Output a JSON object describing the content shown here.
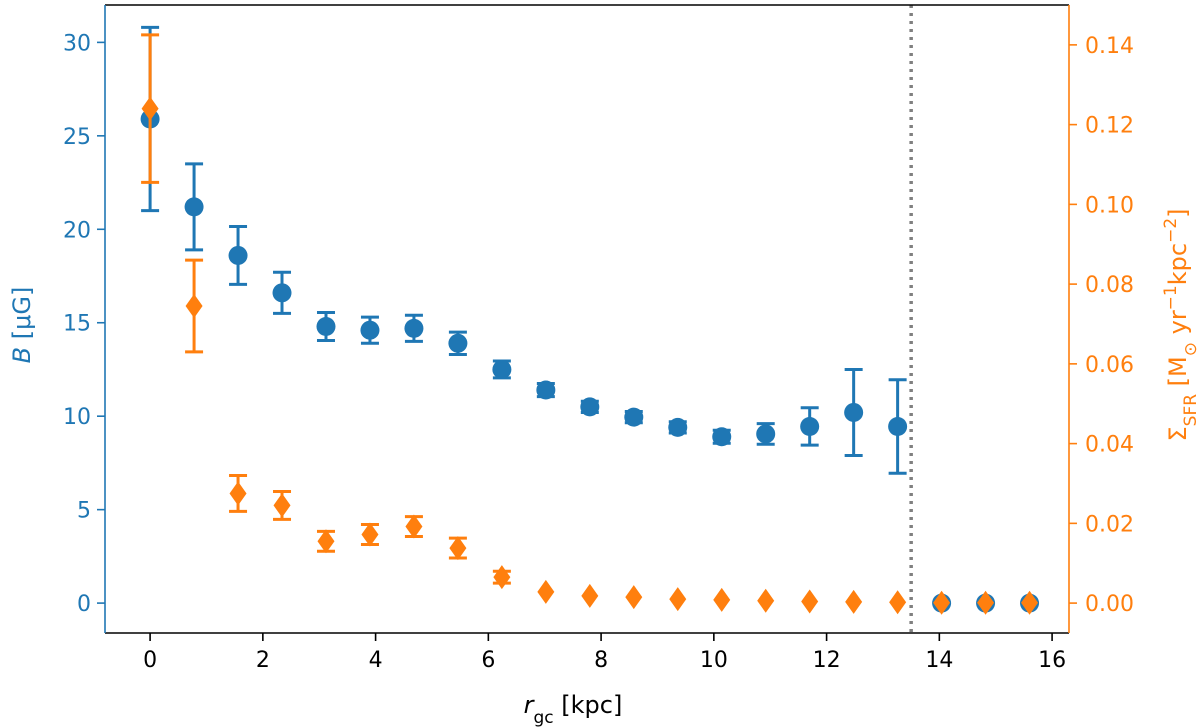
{
  "chart_data": {
    "type": "scatter",
    "title": "",
    "xlabel": {
      "main": "r",
      "sub": "gc",
      "unit": " [kpc]"
    },
    "ylabel_left": {
      "main": "B",
      "unit": " [μG]"
    },
    "ylabel_right": {
      "main": "Σ",
      "sub": "SFR",
      "unit": " [M",
      "sun_sub": "⊙",
      "rest1": " yr",
      "sup1": "−1",
      "rest2": "kpc",
      "sup2": "−2",
      "close": "]"
    },
    "xlim": [
      -0.8,
      16.3
    ],
    "ylim_left": [
      -1.6,
      32.0
    ],
    "ylim_right": [
      -0.0075,
      0.15
    ],
    "x_ticks": [
      0,
      2,
      4,
      6,
      8,
      10,
      12,
      14,
      16
    ],
    "y_left_ticks": [
      0,
      5,
      10,
      15,
      20,
      25,
      30
    ],
    "y_right_ticks": [
      0.0,
      0.02,
      0.04,
      0.06,
      0.08,
      0.1,
      0.12,
      0.14
    ],
    "y_right_tick_labels": [
      "0.00",
      "0.02",
      "0.04",
      "0.06",
      "0.08",
      "0.10",
      "0.12",
      "0.14"
    ],
    "vline_x": 13.5,
    "series": [
      {
        "name": "B",
        "axis": "left",
        "marker": "circle",
        "color": "#1f77b4",
        "x": [
          0,
          0.78,
          1.56,
          2.34,
          3.12,
          3.9,
          4.68,
          5.46,
          6.24,
          7.02,
          7.8,
          8.58,
          9.36,
          10.14,
          10.92,
          11.7,
          12.48,
          13.26,
          14.04,
          14.82,
          15.6
        ],
        "y": [
          25.9,
          21.2,
          18.6,
          16.6,
          14.8,
          14.6,
          14.7,
          13.9,
          12.5,
          11.4,
          10.5,
          9.95,
          9.4,
          8.9,
          9.05,
          9.45,
          10.2,
          9.45,
          0,
          0,
          0
        ],
        "err": [
          4.9,
          2.3,
          1.55,
          1.1,
          0.75,
          0.7,
          0.7,
          0.6,
          0.45,
          0.35,
          0.3,
          0.3,
          0.3,
          0.35,
          0.55,
          1.0,
          2.3,
          2.5,
          0,
          0,
          0
        ]
      },
      {
        "name": "Σ_SFR",
        "axis": "right",
        "marker": "diamond",
        "color": "#ff7f0e",
        "x": [
          0,
          0.78,
          1.56,
          2.34,
          3.12,
          3.9,
          4.68,
          5.46,
          6.24,
          7.02,
          7.8,
          8.58,
          9.36,
          10.14,
          10.92,
          11.7,
          12.48,
          13.26,
          14.04,
          14.82,
          15.6
        ],
        "y": [
          0.124,
          0.0745,
          0.0275,
          0.0245,
          0.0155,
          0.0172,
          0.0192,
          0.0138,
          0.0065,
          0.0028,
          0.0018,
          0.0015,
          0.001,
          0.0008,
          0.0006,
          0.0004,
          0.0003,
          0.0002,
          0.0001,
          0.0001,
          0.0001
        ],
        "err": [
          0.0185,
          0.0115,
          0.0045,
          0.0035,
          0.0025,
          0.0025,
          0.0025,
          0.0025,
          0.0015,
          0,
          0,
          0,
          0,
          0,
          0,
          0,
          0,
          0,
          0,
          0,
          0
        ]
      }
    ]
  }
}
